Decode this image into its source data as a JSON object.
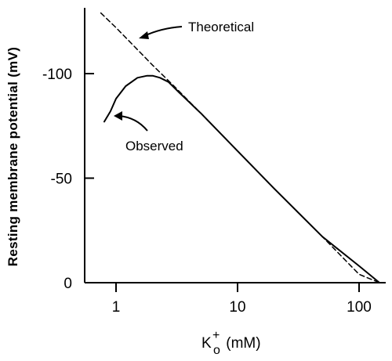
{
  "chart_data": {
    "type": "line",
    "ylabel": "Resting membrane potential (mV)",
    "xlabel_main": "K",
    "xlabel_sup": "+",
    "xlabel_sub": "o",
    "xlabel_unit": " (mM)",
    "xscale": "log",
    "xlim": [
      0.65,
      160
    ],
    "ylim": [
      0,
      -128
    ],
    "x_ticks": [
      1,
      10,
      100
    ],
    "x_tick_labels": [
      "1",
      "10",
      "100"
    ],
    "y_ticks": [
      -100,
      -50,
      0
    ],
    "y_tick_labels": [
      "-100",
      "-50",
      "0"
    ],
    "grid": false,
    "series": [
      {
        "name": "Theoretical",
        "style": "dashed",
        "x": [
          0.75,
          1,
          2,
          3,
          5,
          10,
          20,
          50,
          100,
          150
        ],
        "y": [
          -129,
          -122,
          -104,
          -94,
          -81,
          -63,
          -45,
          -22,
          -4,
          6
        ]
      },
      {
        "name": "Observed",
        "style": "solid",
        "x": [
          0.8,
          0.9,
          1.0,
          1.2,
          1.5,
          1.8,
          2.0,
          2.3,
          2.7,
          3.3,
          5,
          10,
          20,
          50,
          100,
          150
        ],
        "y": [
          -77,
          -82,
          -88,
          -94,
          -98,
          -99,
          -99,
          -98,
          -96,
          -91,
          -81,
          -63,
          -45,
          -22,
          -8,
          0
        ]
      }
    ],
    "annotations": [
      {
        "text": "Theoretical",
        "points_to_series": "Theoretical"
      },
      {
        "text": "Observed",
        "points_to_series": "Observed"
      }
    ]
  }
}
